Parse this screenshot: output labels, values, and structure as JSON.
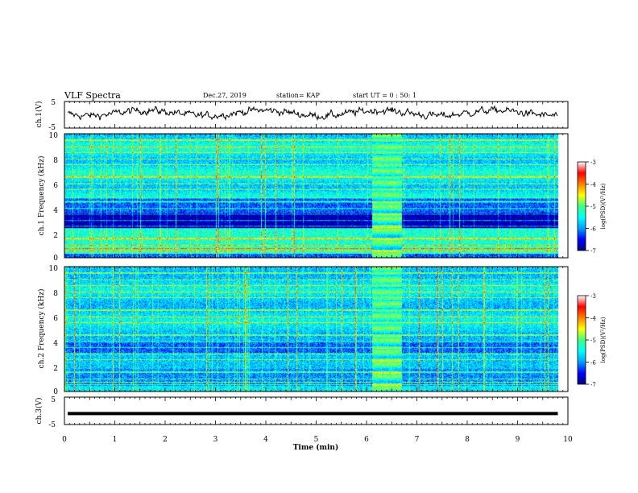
{
  "header": {
    "title": "VLF Spectra",
    "date": "Dec.27, 2019",
    "station": "station= KAP",
    "start_ut": "start UT = 0 : 50: 1"
  },
  "colorbar": {
    "label": "log(PSD)(V²/Hz)",
    "ticks": [
      "-3",
      "-4",
      "-5",
      "-6",
      "-7"
    ],
    "range": [
      -7,
      -3
    ],
    "colors": [
      "#000080",
      "#0000ff",
      "#00a0ff",
      "#00ffff",
      "#40ff80",
      "#ffff00",
      "#ff8000",
      "#ff0000",
      "#ffffff"
    ]
  },
  "chart_data": [
    {
      "type": "line",
      "name": "ch1-waveform",
      "ylabel": "ch.1(V)",
      "ylim": [
        -5,
        5
      ],
      "y_ticks": [
        "5",
        "-5"
      ],
      "trace": "noisy waveform fluctuating about 0 V (roughly -2 to +3 V) over 0–9.8 min"
    },
    {
      "type": "heatmap",
      "name": "ch1-spectrogram",
      "ylabel": "ch.1 Frequency (kHz)",
      "ylim": [
        0,
        10
      ],
      "xlim": [
        0,
        10
      ],
      "y_ticks": [
        "0",
        "2",
        "4",
        "6",
        "8",
        "10"
      ],
      "disturbance_interval_min": [
        6.1,
        6.7
      ]
    },
    {
      "type": "heatmap",
      "name": "ch2-spectrogram",
      "ylabel": "ch.2 Frequency (kHz)",
      "ylim": [
        0,
        10
      ],
      "xlim": [
        0,
        10
      ],
      "y_ticks": [
        "0",
        "2",
        "4",
        "6",
        "8",
        "10"
      ],
      "disturbance_interval_min": [
        6.1,
        6.7
      ]
    },
    {
      "type": "line",
      "name": "ch3-waveform",
      "ylabel": "ch.3(V)",
      "ylim": [
        -5,
        5
      ],
      "y_ticks": [
        "5",
        "-5"
      ],
      "trace": "flat line at about -1 V over 0–9.8 min"
    }
  ],
  "x_axis": {
    "label": "Time (min)",
    "ticks": [
      "0",
      "1",
      "2",
      "3",
      "4",
      "5",
      "6",
      "7",
      "8",
      "9",
      "10"
    ],
    "range": [
      0,
      10
    ],
    "data_end_min": 9.8
  }
}
